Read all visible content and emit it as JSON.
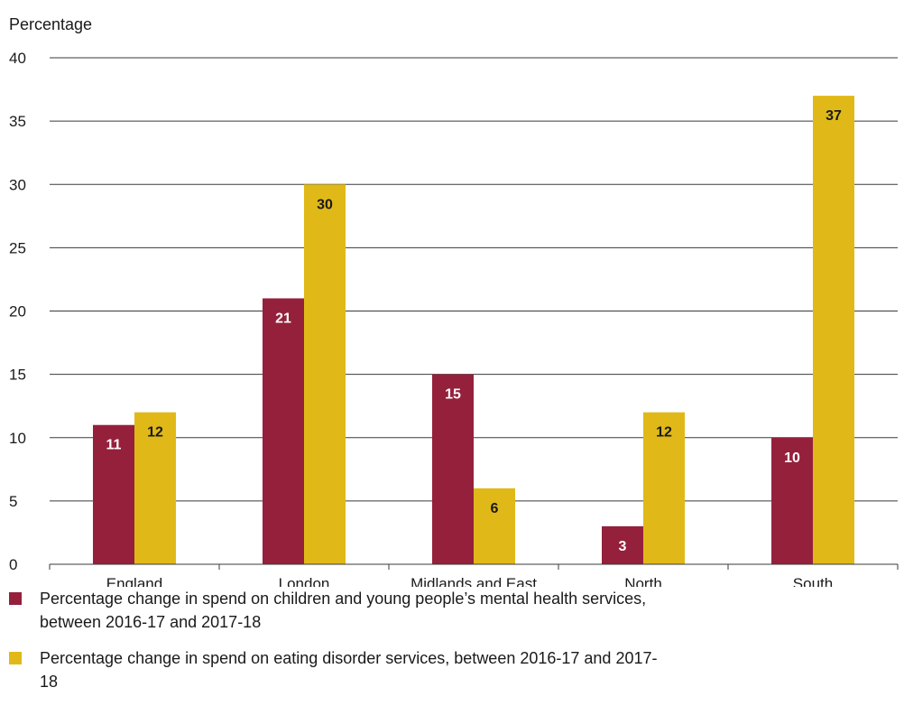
{
  "chart_data": {
    "type": "bar",
    "ylabel": "Percentage",
    "xlabel": "",
    "title": "",
    "ylim": [
      0,
      40
    ],
    "yticks": [
      0,
      5,
      10,
      15,
      20,
      25,
      30,
      35,
      40
    ],
    "grid": "horizontal",
    "categories": [
      "England",
      "London",
      "Midlands and East",
      "North",
      "South"
    ],
    "series": [
      {
        "name": "Percentage change in spend on children and young people’s mental health services, between 2016-17 and 2017-18",
        "color": "#95203c",
        "label_color": "#ffffff",
        "values": [
          11,
          21,
          15,
          3,
          10
        ]
      },
      {
        "name": "Percentage change in spend on eating disorder services, between 2016-17 and 2017-18",
        "color": "#e0b918",
        "label_color": "#1a1a1a",
        "values": [
          12,
          30,
          6,
          12,
          37
        ]
      }
    ],
    "legend_position": "bottom"
  }
}
